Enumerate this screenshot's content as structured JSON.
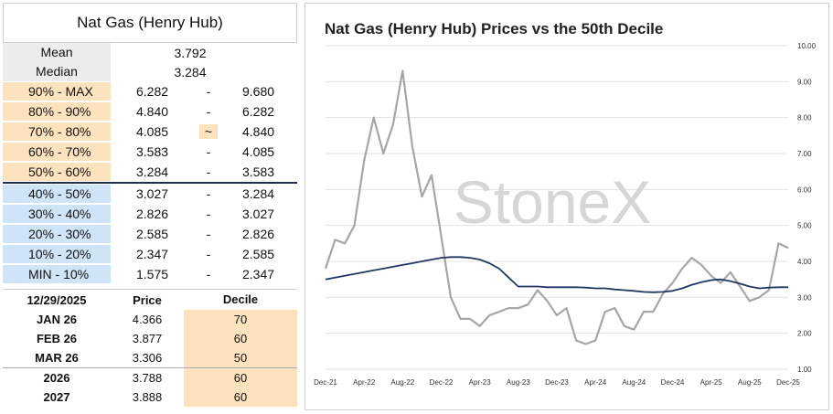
{
  "left_title": "Nat Gas (Henry Hub)",
  "stats": [
    {
      "label": "Mean",
      "value": "3.792"
    },
    {
      "label": "Median",
      "value": "3.284"
    }
  ],
  "deciles": [
    {
      "label": "90% - MAX",
      "low": "6.282",
      "sep": "-",
      "high": "9.680",
      "side": "up"
    },
    {
      "label": "80% - 90%",
      "low": "4.840",
      "sep": "-",
      "high": "6.282",
      "side": "up"
    },
    {
      "label": "70% - 80%",
      "low": "4.085",
      "sep": "~",
      "high": "4.840",
      "side": "up"
    },
    {
      "label": "60% - 70%",
      "low": "3.583",
      "sep": "-",
      "high": "4.085",
      "side": "up"
    },
    {
      "label": "50% - 60%",
      "low": "3.284",
      "sep": "-",
      "high": "3.583",
      "side": "up"
    },
    {
      "label": "40% - 50%",
      "low": "3.027",
      "sep": "-",
      "high": "3.284",
      "side": "dn"
    },
    {
      "label": "30% - 40%",
      "low": "2.826",
      "sep": "-",
      "high": "3.027",
      "side": "dn"
    },
    {
      "label": "20% - 30%",
      "low": "2.585",
      "sep": "-",
      "high": "2.826",
      "side": "dn"
    },
    {
      "label": "10% - 20%",
      "low": "2.347",
      "sep": "-",
      "high": "2.585",
      "side": "dn"
    },
    {
      "label": "MIN - 10%",
      "low": "1.575",
      "sep": "-",
      "high": "2.347",
      "side": "dn"
    }
  ],
  "futures": {
    "date": "12/29/2025",
    "col_price": "Price",
    "col_decile": "Decile",
    "rows": [
      {
        "contract": "JAN 26",
        "price": "4.366",
        "decile": "70"
      },
      {
        "contract": "FEB 26",
        "price": "3.877",
        "decile": "60"
      },
      {
        "contract": "MAR 26",
        "price": "3.306",
        "decile": "50"
      },
      {
        "contract": "2026",
        "price": "3.788",
        "decile": "60"
      },
      {
        "contract": "2027",
        "price": "3.888",
        "decile": "60"
      }
    ]
  },
  "watermark": "StoneX",
  "colors": {
    "price": "#a6a6a6",
    "decile": "#1f3864",
    "upper": "#fde3bd",
    "lower": "#cfe4f7"
  },
  "chart_data": {
    "type": "line",
    "title": "Nat Gas (Henry Hub) Prices vs the 50th Decile",
    "x_ticks": [
      "Dec-21",
      "Apr-22",
      "Aug-22",
      "Dec-22",
      "Apr-23",
      "Aug-23",
      "Dec-23",
      "Apr-24",
      "Aug-24",
      "Dec-24",
      "Apr-25",
      "Aug-25",
      "Dec-25"
    ],
    "ylim": [
      1.0,
      10.0
    ],
    "y_ticks": [
      "1.00",
      "2.00",
      "3.00",
      "4.00",
      "5.00",
      "6.00",
      "7.00",
      "8.00",
      "9.00",
      "10.00"
    ],
    "grid": true,
    "series": [
      {
        "key": "price",
        "x": [
          "Dec-21",
          "Jan-22",
          "Feb-22",
          "Mar-22",
          "Apr-22",
          "May-22",
          "Jun-22",
          "Jul-22",
          "Aug-22",
          "Sep-22",
          "Oct-22",
          "Nov-22",
          "Dec-22",
          "Jan-23",
          "Feb-23",
          "Mar-23",
          "Apr-23",
          "May-23",
          "Jun-23",
          "Jul-23",
          "Aug-23",
          "Sep-23",
          "Oct-23",
          "Nov-23",
          "Dec-23",
          "Jan-24",
          "Feb-24",
          "Mar-24",
          "Apr-24",
          "May-24",
          "Jun-24",
          "Jul-24",
          "Aug-24",
          "Sep-24",
          "Oct-24",
          "Nov-24",
          "Dec-24",
          "Jan-25",
          "Feb-25",
          "Mar-25",
          "Apr-25",
          "May-25",
          "Jun-25",
          "Jul-25",
          "Aug-25",
          "Sep-25",
          "Oct-25",
          "Nov-25",
          "Dec-25"
        ],
        "values": [
          3.8,
          4.6,
          4.5,
          5.0,
          6.8,
          8.0,
          7.0,
          7.8,
          9.3,
          7.2,
          5.8,
          6.4,
          4.7,
          3.0,
          2.4,
          2.4,
          2.2,
          2.5,
          2.6,
          2.7,
          2.7,
          2.8,
          3.2,
          2.9,
          2.5,
          2.7,
          1.8,
          1.7,
          1.8,
          2.6,
          2.7,
          2.2,
          2.1,
          2.6,
          2.6,
          3.1,
          3.4,
          3.8,
          4.1,
          3.9,
          3.6,
          3.4,
          3.7,
          3.3,
          2.9,
          3.0,
          3.2,
          4.5,
          4.37
        ]
      },
      {
        "key": "decile",
        "x": [
          "Dec-21",
          "Jan-22",
          "Feb-22",
          "Mar-22",
          "Apr-22",
          "May-22",
          "Jun-22",
          "Jul-22",
          "Aug-22",
          "Sep-22",
          "Oct-22",
          "Nov-22",
          "Dec-22",
          "Jan-23",
          "Feb-23",
          "Mar-23",
          "Apr-23",
          "May-23",
          "Jun-23",
          "Jul-23",
          "Aug-23",
          "Sep-23",
          "Oct-23",
          "Nov-23",
          "Dec-23",
          "Jan-24",
          "Feb-24",
          "Mar-24",
          "Apr-24",
          "May-24",
          "Jun-24",
          "Jul-24",
          "Aug-24",
          "Sep-24",
          "Oct-24",
          "Nov-24",
          "Dec-24",
          "Jan-25",
          "Feb-25",
          "Mar-25",
          "Apr-25",
          "May-25",
          "Jun-25",
          "Jul-25",
          "Aug-25",
          "Sep-25",
          "Oct-25",
          "Nov-25",
          "Dec-25"
        ],
        "values": [
          3.5,
          3.55,
          3.6,
          3.65,
          3.7,
          3.75,
          3.8,
          3.85,
          3.9,
          3.95,
          4.0,
          4.05,
          4.1,
          4.12,
          4.12,
          4.1,
          4.05,
          3.95,
          3.8,
          3.55,
          3.3,
          3.3,
          3.3,
          3.28,
          3.28,
          3.28,
          3.28,
          3.27,
          3.25,
          3.25,
          3.22,
          3.2,
          3.18,
          3.15,
          3.14,
          3.15,
          3.18,
          3.25,
          3.35,
          3.42,
          3.48,
          3.5,
          3.45,
          3.38,
          3.3,
          3.25,
          3.27,
          3.28,
          3.28
        ]
      }
    ]
  }
}
